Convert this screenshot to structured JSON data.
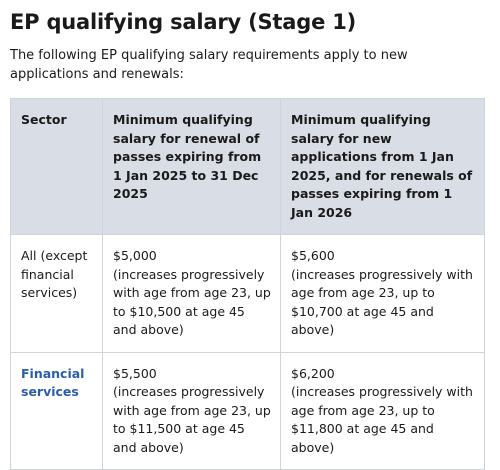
{
  "heading": "EP qualifying salary (Stage 1)",
  "intro": "The following EP qualifying salary requirements apply to new applications and renewals:",
  "table": {
    "headers": {
      "sector": "Sector",
      "renewal": "Minimum qualifying salary for renewal of passes expiring from 1 Jan 2025 to 31 Dec 2025",
      "new": "Minimum qualifying salary for new applications from 1 Jan 2025, and for renewals of passes expiring from 1 Jan 2026"
    },
    "rows": [
      {
        "sector": "All (except financial services)",
        "renewal_amount": "$5,000",
        "renewal_note": "(increases progressively with age from age 23, up to $10,500 at age 45 and above)",
        "new_amount": "$5,600",
        "new_note": "(increases progressively with age from age 23, up to $10,700 at age 45 and above)"
      },
      {
        "sector": "Financial services",
        "renewal_amount": "$5,500",
        "renewal_note": "(increases progressively with age from age 23, up to $11,500 at age 45 and above)",
        "new_amount": "$6,200",
        "new_note": "(increases progressively with age from age 23, up to $11,800 at age 45 and above)"
      }
    ]
  },
  "colors": {
    "header_bg": "#d9dde6",
    "border": "#cfd4dc",
    "link": "#2b5dad"
  }
}
